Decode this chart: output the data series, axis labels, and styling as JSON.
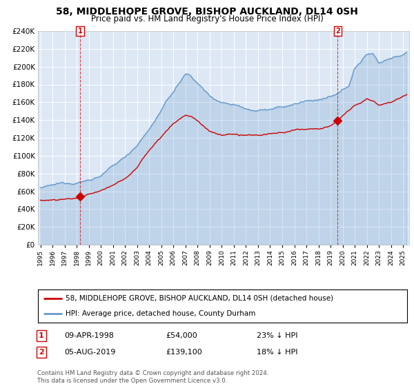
{
  "title": "58, MIDDLEHOPE GROVE, BISHOP AUCKLAND, DL14 0SH",
  "subtitle": "Price paid vs. HM Land Registry's House Price Index (HPI)",
  "legend_line1": "58, MIDDLEHOPE GROVE, BISHOP AUCKLAND, DL14 0SH (detached house)",
  "legend_line2": "HPI: Average price, detached house, County Durham",
  "annotation1_date": "09-APR-1998",
  "annotation1_price": "£54,000",
  "annotation1_hpi": "23% ↓ HPI",
  "annotation1_year": 1998.28,
  "annotation1_value": 54000,
  "annotation2_date": "05-AUG-2019",
  "annotation2_price": "£139,100",
  "annotation2_hpi": "18% ↓ HPI",
  "annotation2_year": 2019.59,
  "annotation2_value": 139100,
  "bg_color": "#dde8f4",
  "grid_color": "#ffffff",
  "red_color": "#cc0000",
  "blue_color": "#6699cc",
  "footer": "Contains HM Land Registry data © Crown copyright and database right 2024.\nThis data is licensed under the Open Government Licence v3.0.",
  "ylim_min": 0,
  "ylim_max": 240000,
  "yticks": [
    0,
    20000,
    40000,
    60000,
    80000,
    100000,
    120000,
    140000,
    160000,
    180000,
    200000,
    220000,
    240000
  ],
  "xlim_min": 1994.8,
  "xlim_max": 2025.5
}
